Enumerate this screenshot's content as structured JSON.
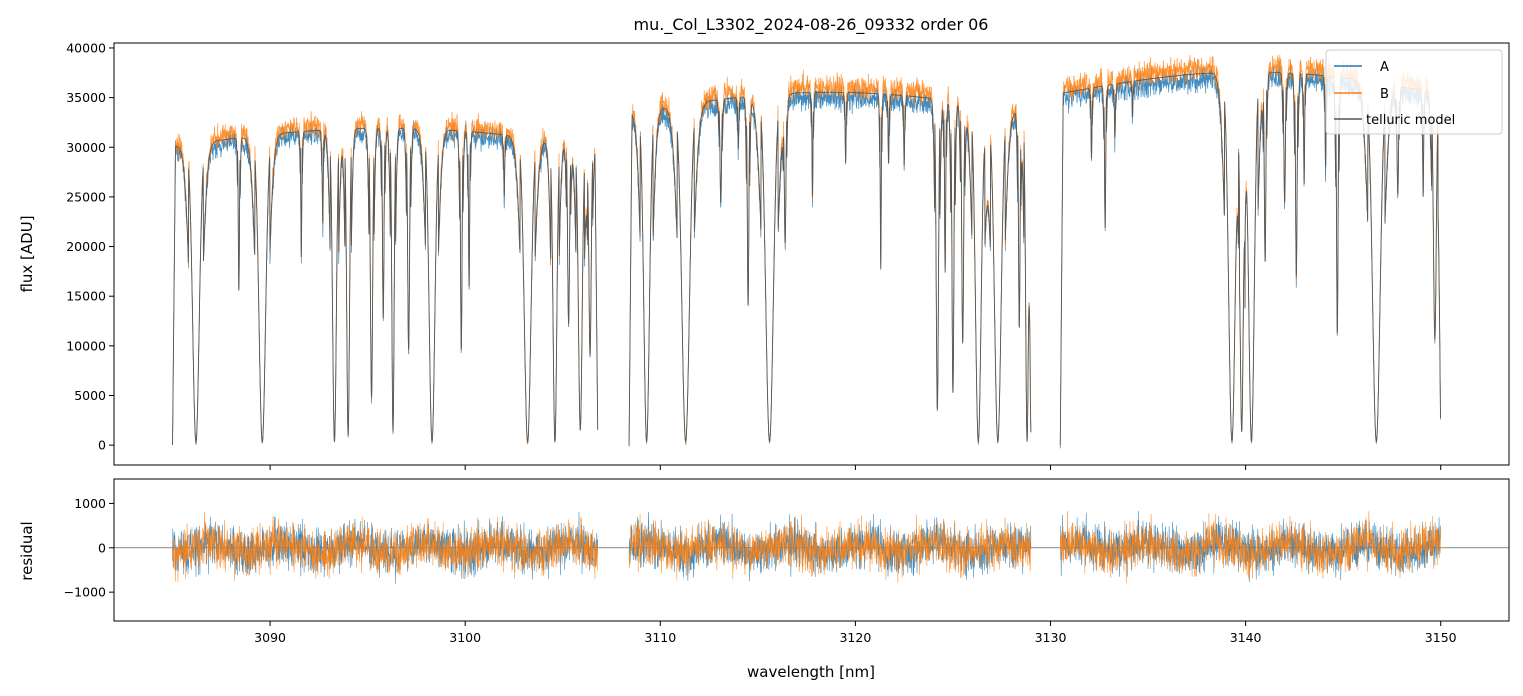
{
  "chart_data": [
    {
      "type": "line",
      "title": "mu._Col_L3302_2024-08-26_09332  order 06",
      "xlabel": "",
      "ylabel": "flux [ADU]",
      "xlim": [
        3082,
        3153.5
      ],
      "ylim": [
        -2000,
        40500
      ],
      "yticks": [
        0,
        5000,
        10000,
        15000,
        20000,
        25000,
        30000,
        35000,
        40000
      ],
      "grid": false,
      "legend": "top-right",
      "series": [
        {
          "name": "A",
          "color": "#1f77b4"
        },
        {
          "name": "B",
          "color": "#ff7f0e"
        },
        {
          "name": "telluric model",
          "color": "#555555"
        }
      ],
      "segments": [
        {
          "x_start": 3085.0,
          "x_end": 3106.8,
          "level": 31000
        },
        {
          "x_start": 3108.4,
          "x_end": 3129.0,
          "level": 34500
        },
        {
          "x_start": 3130.5,
          "x_end": 3150.0,
          "level": 36500
        }
      ],
      "absorption_lines": [
        [
          3086.2,
          0.99,
          0.35
        ],
        [
          3088.4,
          0.5,
          0.06
        ],
        [
          3089.6,
          0.99,
          0.35
        ],
        [
          3091.6,
          0.4,
          0.05
        ],
        [
          3092.7,
          0.3,
          0.05
        ],
        [
          3093.3,
          0.99,
          0.2
        ],
        [
          3094.0,
          0.97,
          0.15
        ],
        [
          3095.2,
          0.85,
          0.12
        ],
        [
          3095.8,
          0.6,
          0.08
        ],
        [
          3096.3,
          0.96,
          0.12
        ],
        [
          3097.1,
          0.7,
          0.1
        ],
        [
          3098.3,
          0.99,
          0.3
        ],
        [
          3099.8,
          0.7,
          0.08
        ],
        [
          3100.2,
          0.5,
          0.06
        ],
        [
          3102.0,
          0.2,
          0.05
        ],
        [
          3103.2,
          0.99,
          0.35
        ],
        [
          3104.6,
          0.99,
          0.2
        ],
        [
          3105.3,
          0.6,
          0.1
        ],
        [
          3105.9,
          0.95,
          0.2
        ],
        [
          3106.4,
          0.7,
          0.12
        ],
        [
          3109.3,
          0.99,
          0.3
        ],
        [
          3111.3,
          0.99,
          0.4
        ],
        [
          3113.1,
          0.3,
          0.08
        ],
        [
          3114.0,
          0.15,
          0.05
        ],
        [
          3114.5,
          0.6,
          0.08
        ],
        [
          3115.6,
          0.99,
          0.4
        ],
        [
          3116.4,
          0.4,
          0.08
        ],
        [
          3117.8,
          0.3,
          0.05
        ],
        [
          3119.5,
          0.2,
          0.05
        ],
        [
          3121.3,
          0.5,
          0.05
        ],
        [
          3121.7,
          0.2,
          0.05
        ],
        [
          3122.5,
          0.2,
          0.05
        ],
        [
          3124.2,
          0.9,
          0.12
        ],
        [
          3124.6,
          0.5,
          0.06
        ],
        [
          3125.0,
          0.85,
          0.1
        ],
        [
          3125.5,
          0.7,
          0.1
        ],
        [
          3126.3,
          0.99,
          0.3
        ],
        [
          3127.3,
          0.99,
          0.35
        ],
        [
          3128.4,
          0.65,
          0.08
        ],
        [
          3128.8,
          0.99,
          0.15
        ],
        [
          3132.1,
          0.2,
          0.05
        ],
        [
          3132.8,
          0.4,
          0.06
        ],
        [
          3133.3,
          0.15,
          0.05
        ],
        [
          3134.2,
          0.1,
          0.04
        ],
        [
          3139.3,
          0.99,
          0.35
        ],
        [
          3139.8,
          0.95,
          0.15
        ],
        [
          3140.3,
          0.99,
          0.3
        ],
        [
          3141.0,
          0.5,
          0.08
        ],
        [
          3142.0,
          0.35,
          0.08
        ],
        [
          3142.6,
          0.55,
          0.08
        ],
        [
          3143.0,
          0.3,
          0.05
        ],
        [
          3144.1,
          0.25,
          0.05
        ],
        [
          3144.7,
          0.7,
          0.08
        ],
        [
          3146.7,
          0.99,
          0.4
        ],
        [
          3147.8,
          0.3,
          0.08
        ],
        [
          3149.1,
          0.3,
          0.05
        ],
        [
          3149.7,
          0.7,
          0.15
        ]
      ]
    },
    {
      "type": "line",
      "title": "",
      "xlabel": "wavelength [nm]",
      "ylabel": "residual",
      "xlim": [
        3082,
        3153.5
      ],
      "ylim": [
        -1650,
        1550
      ],
      "yticks": [
        -1000,
        0,
        1000
      ],
      "xticks": [
        3090,
        3100,
        3110,
        3120,
        3130,
        3140,
        3150
      ],
      "zero_line": true,
      "grid": false,
      "series": [
        {
          "name": "A",
          "color": "#1f77b4"
        },
        {
          "name": "B",
          "color": "#ff7f0e"
        }
      ]
    }
  ]
}
